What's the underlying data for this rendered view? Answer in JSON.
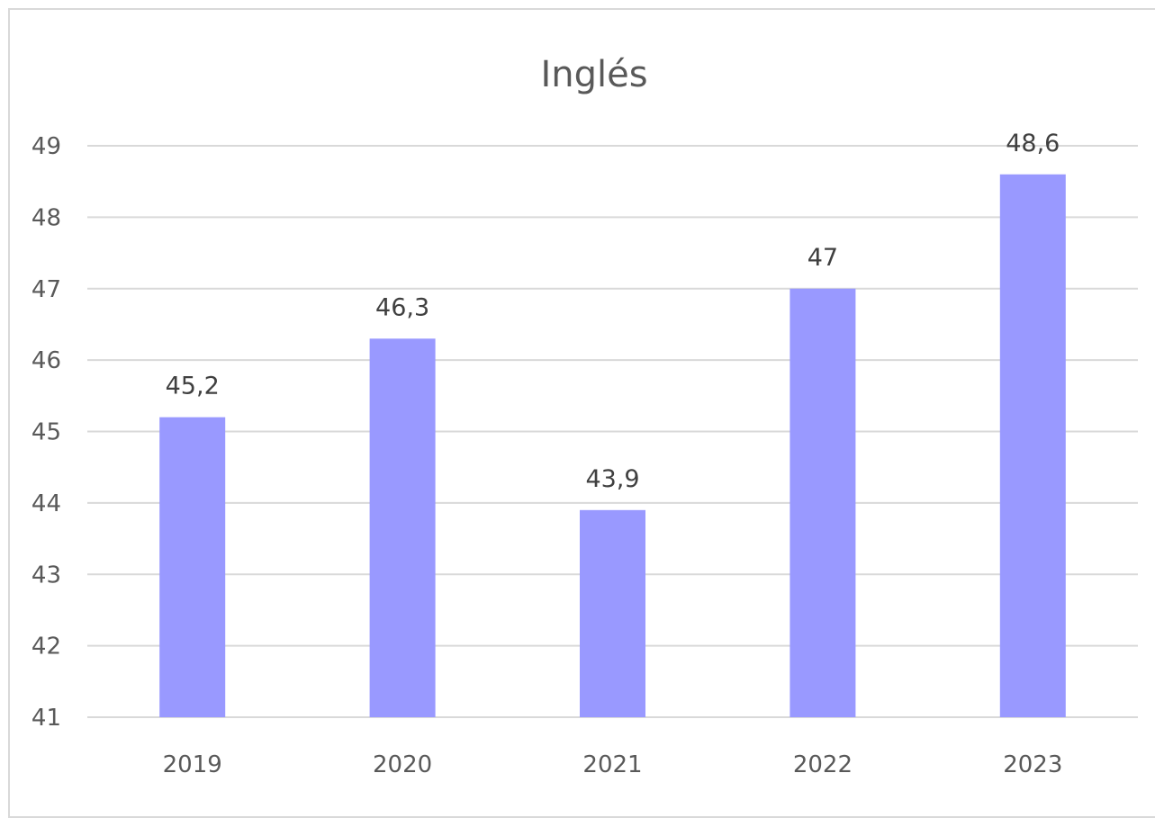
{
  "chart_data": {
    "type": "bar",
    "title": "Inglés",
    "categories": [
      "2019",
      "2020",
      "2021",
      "2022",
      "2023"
    ],
    "values": [
      45.2,
      46.3,
      43.9,
      47,
      48.6
    ],
    "data_labels": [
      "45,2",
      "46,3",
      "43,9",
      "47",
      "48,6"
    ],
    "ylim": [
      41,
      49
    ],
    "yticks": [
      41,
      42,
      43,
      44,
      45,
      46,
      47,
      48,
      49
    ],
    "xlabel": "",
    "ylabel": "",
    "grid": true,
    "legend": "none",
    "bar_color": "#9999ff"
  }
}
